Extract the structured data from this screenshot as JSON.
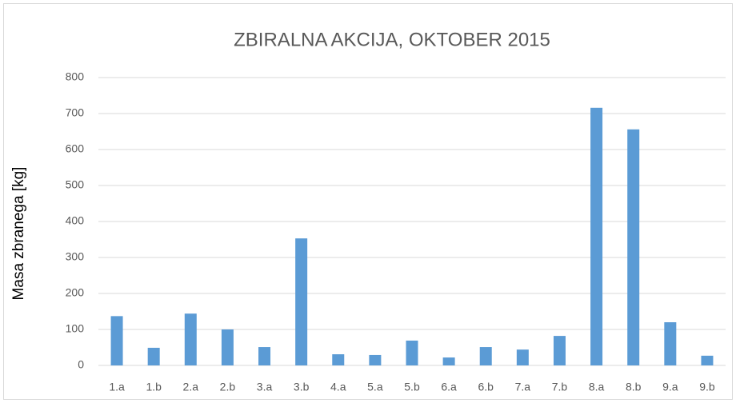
{
  "chart_data": {
    "type": "bar",
    "title": "ZBIRALNA AKCIJA, OKTOBER 2015",
    "y_label": "Masa zbranega [kg]",
    "categories": [
      "1.a",
      "1.b",
      "2.a",
      "2.b",
      "3.a",
      "3.b",
      "4.a",
      "5.a",
      "5.b",
      "6.a",
      "6.b",
      "7.a",
      "7.b",
      "8.a",
      "8.b",
      "9.a",
      "9.b"
    ],
    "values": [
      137,
      49,
      144,
      100,
      51,
      353,
      31,
      29,
      69,
      22,
      51,
      44,
      82,
      716,
      656,
      120,
      27
    ],
    "color": "#5b9bd5",
    "ylim": [
      0,
      800
    ],
    "yticks": [
      0,
      100,
      200,
      300,
      400,
      500,
      600,
      700,
      800
    ],
    "grid": true
  }
}
